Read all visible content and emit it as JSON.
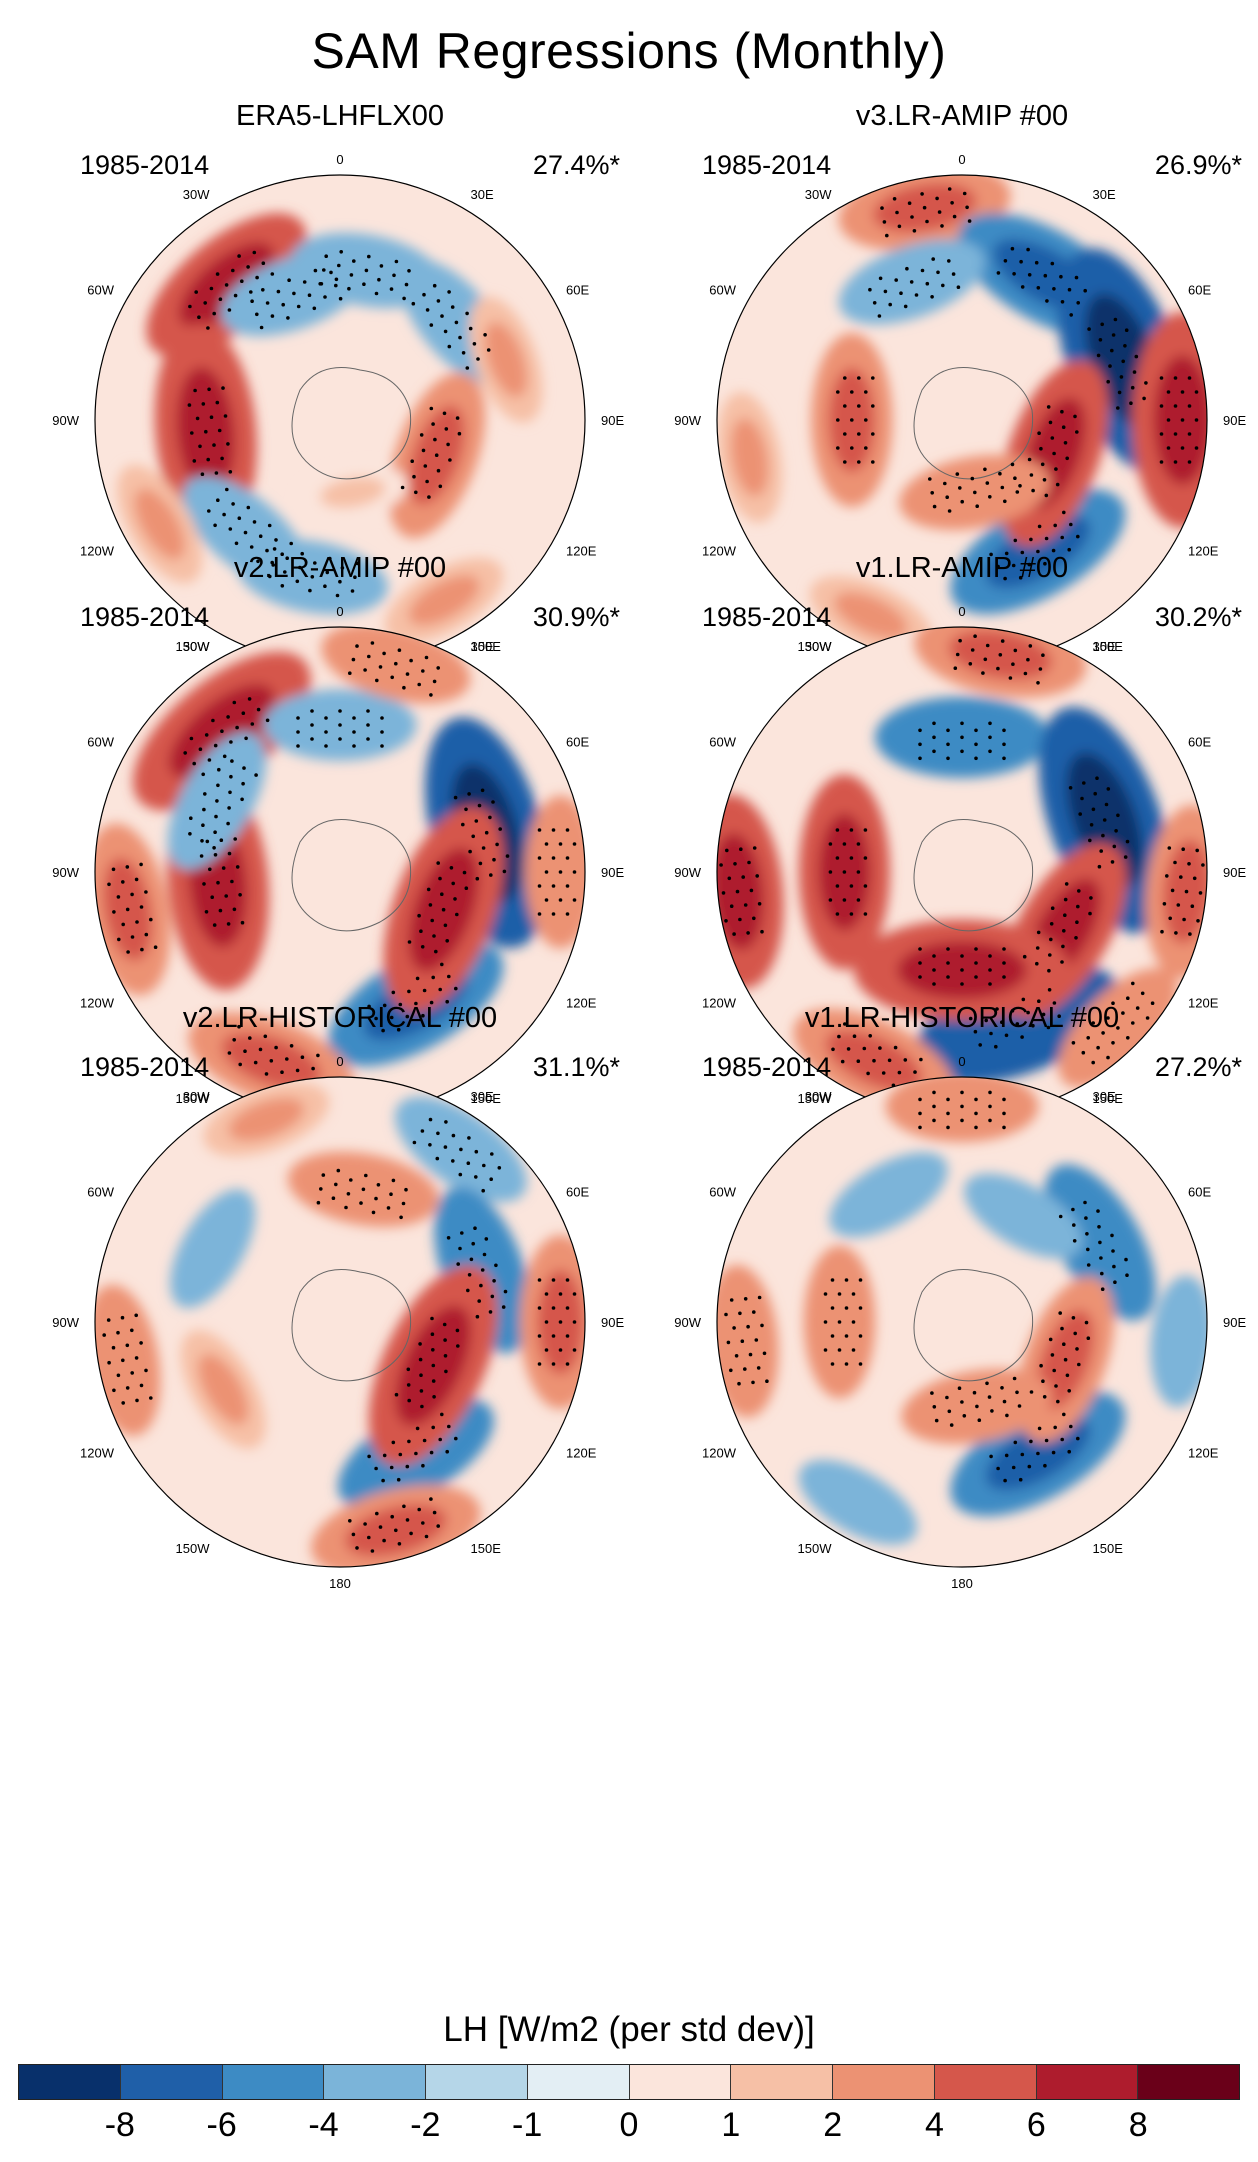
{
  "title": "SAM Regressions (Monthly)",
  "panels": [
    {
      "title": "ERA5-LHFLX00",
      "period": "1985-2014",
      "percent": "27.4%*",
      "blobs": [
        {
          "lon": -40,
          "r": 0.72,
          "v": 5
        },
        {
          "lon": -20,
          "r": 0.55,
          "v": -3
        },
        {
          "lon": 10,
          "r": 0.62,
          "v": -3
        },
        {
          "lon": 50,
          "r": 0.62,
          "v": -3
        },
        {
          "lon": 70,
          "r": 0.72,
          "v": 2
        },
        {
          "lon": -95,
          "r": 0.55,
          "v": 6
        },
        {
          "lon": -140,
          "r": 0.6,
          "v": -3
        },
        {
          "lon": -170,
          "r": 0.65,
          "v": -3
        },
        {
          "lon": 110,
          "r": 0.42,
          "v": 4
        },
        {
          "lon": -120,
          "r": 0.85,
          "v": 2
        },
        {
          "lon": 150,
          "r": 0.85,
          "v": 2
        },
        {
          "lon": 170,
          "r": 0.3,
          "v": 1
        }
      ]
    },
    {
      "title": "v3.LR-AMIP  #00",
      "period": "1985-2014",
      "percent": "26.9%*",
      "blobs": [
        {
          "lon": -10,
          "r": 0.88,
          "v": 4
        },
        {
          "lon": 30,
          "r": 0.68,
          "v": -5
        },
        {
          "lon": 70,
          "r": 0.7,
          "v": -7
        },
        {
          "lon": 150,
          "r": 0.62,
          "v": -5
        },
        {
          "lon": -20,
          "r": 0.6,
          "v": -3
        },
        {
          "lon": -90,
          "r": 0.45,
          "v": 4
        },
        {
          "lon": 110,
          "r": 0.4,
          "v": 5
        },
        {
          "lon": 90,
          "r": 0.9,
          "v": 6
        },
        {
          "lon": -100,
          "r": 0.88,
          "v": 2
        },
        {
          "lon": 170,
          "r": 0.3,
          "v": 3
        },
        {
          "lon": -155,
          "r": 0.88,
          "v": 2
        }
      ]
    },
    {
      "title": "v2.LR-AMIP  #00",
      "period": "1985-2014",
      "percent": "30.9%*",
      "blobs": [
        {
          "lon": -40,
          "r": 0.75,
          "v": 6
        },
        {
          "lon": 0,
          "r": 0.6,
          "v": -3
        },
        {
          "lon": 75,
          "r": 0.62,
          "v": -7
        },
        {
          "lon": 150,
          "r": 0.62,
          "v": -5
        },
        {
          "lon": -95,
          "r": 0.5,
          "v": 6
        },
        {
          "lon": 110,
          "r": 0.45,
          "v": 6
        },
        {
          "lon": -100,
          "r": 0.88,
          "v": 4
        },
        {
          "lon": 90,
          "r": 0.9,
          "v": 3
        },
        {
          "lon": -160,
          "r": 0.82,
          "v": 4
        },
        {
          "lon": 15,
          "r": 0.88,
          "v": 3
        },
        {
          "lon": -60,
          "r": 0.58,
          "v": -3
        }
      ]
    },
    {
      "title": "v1.LR-AMIP  #00",
      "period": "1985-2014",
      "percent": "30.2%*",
      "blobs": [
        {
          "lon": 0,
          "r": 0.55,
          "v": -4
        },
        {
          "lon": 70,
          "r": 0.62,
          "v": -7
        },
        {
          "lon": 160,
          "r": 0.66,
          "v": -6
        },
        {
          "lon": -90,
          "r": 0.48,
          "v": 5
        },
        {
          "lon": 120,
          "r": 0.48,
          "v": 5
        },
        {
          "lon": 180,
          "r": 0.4,
          "v": 6
        },
        {
          "lon": -95,
          "r": 0.92,
          "v": 5
        },
        {
          "lon": 95,
          "r": 0.92,
          "v": 4
        },
        {
          "lon": -155,
          "r": 0.85,
          "v": 4
        },
        {
          "lon": 10,
          "r": 0.9,
          "v": 4
        },
        {
          "lon": 135,
          "r": 0.9,
          "v": 3
        }
      ]
    },
    {
      "title": "v2.LR-HISTORICAL  #00",
      "period": "1985-2014",
      "percent": "31.1%*",
      "blobs": [
        {
          "lon": 35,
          "r": 0.86,
          "v": -3
        },
        {
          "lon": 70,
          "r": 0.62,
          "v": -4
        },
        {
          "lon": 150,
          "r": 0.62,
          "v": -4
        },
        {
          "lon": 90,
          "r": 0.9,
          "v": 4
        },
        {
          "lon": 115,
          "r": 0.42,
          "v": 6
        },
        {
          "lon": 10,
          "r": 0.55,
          "v": 3
        },
        {
          "lon": -100,
          "r": 0.9,
          "v": 3
        },
        {
          "lon": -120,
          "r": 0.55,
          "v": 2
        },
        {
          "lon": -20,
          "r": 0.88,
          "v": 2
        },
        {
          "lon": -60,
          "r": 0.6,
          "v": -2
        },
        {
          "lon": 165,
          "r": 0.88,
          "v": 4
        }
      ]
    },
    {
      "title": "v1.LR-HISTORICAL  #00",
      "period": "1985-2014",
      "percent": "27.2%*",
      "blobs": [
        {
          "lon": 0,
          "r": 0.88,
          "v": 3
        },
        {
          "lon": 60,
          "r": 0.65,
          "v": -4
        },
        {
          "lon": 150,
          "r": 0.62,
          "v": -5
        },
        {
          "lon": -90,
          "r": 0.5,
          "v": 3
        },
        {
          "lon": 110,
          "r": 0.45,
          "v": 4
        },
        {
          "lon": -95,
          "r": 0.9,
          "v": 3
        },
        {
          "lon": 95,
          "r": 0.9,
          "v": -2
        },
        {
          "lon": -150,
          "r": 0.85,
          "v": -2
        },
        {
          "lon": 30,
          "r": 0.5,
          "v": -2
        },
        {
          "lon": -30,
          "r": 0.6,
          "v": -2
        },
        {
          "lon": 170,
          "r": 0.35,
          "v": 3
        }
      ]
    }
  ],
  "longitude_labels": [
    "0",
    "30E",
    "60E",
    "90E",
    "120E",
    "150E",
    "180",
    "150W",
    "120W",
    "90W",
    "60W",
    "30W"
  ],
  "colorbar": {
    "title": "LH [W/m2 (per std dev)]",
    "ticks": [
      "-8",
      "-6",
      "-4",
      "-2",
      "-1",
      "0",
      "1",
      "2",
      "4",
      "6",
      "8"
    ],
    "levels": [
      -8,
      -6,
      -4,
      -2,
      -1,
      0,
      1,
      2,
      4,
      6,
      8
    ],
    "colors": [
      "#08306b",
      "#1f5fa8",
      "#3d8bc4",
      "#7bb4d9",
      "#b5d6e8",
      "#e3eef4",
      "#fbe5dc",
      "#f6c0a6",
      "#ec9273",
      "#d5574b",
      "#ae1c2d",
      "#6a0019"
    ]
  }
}
